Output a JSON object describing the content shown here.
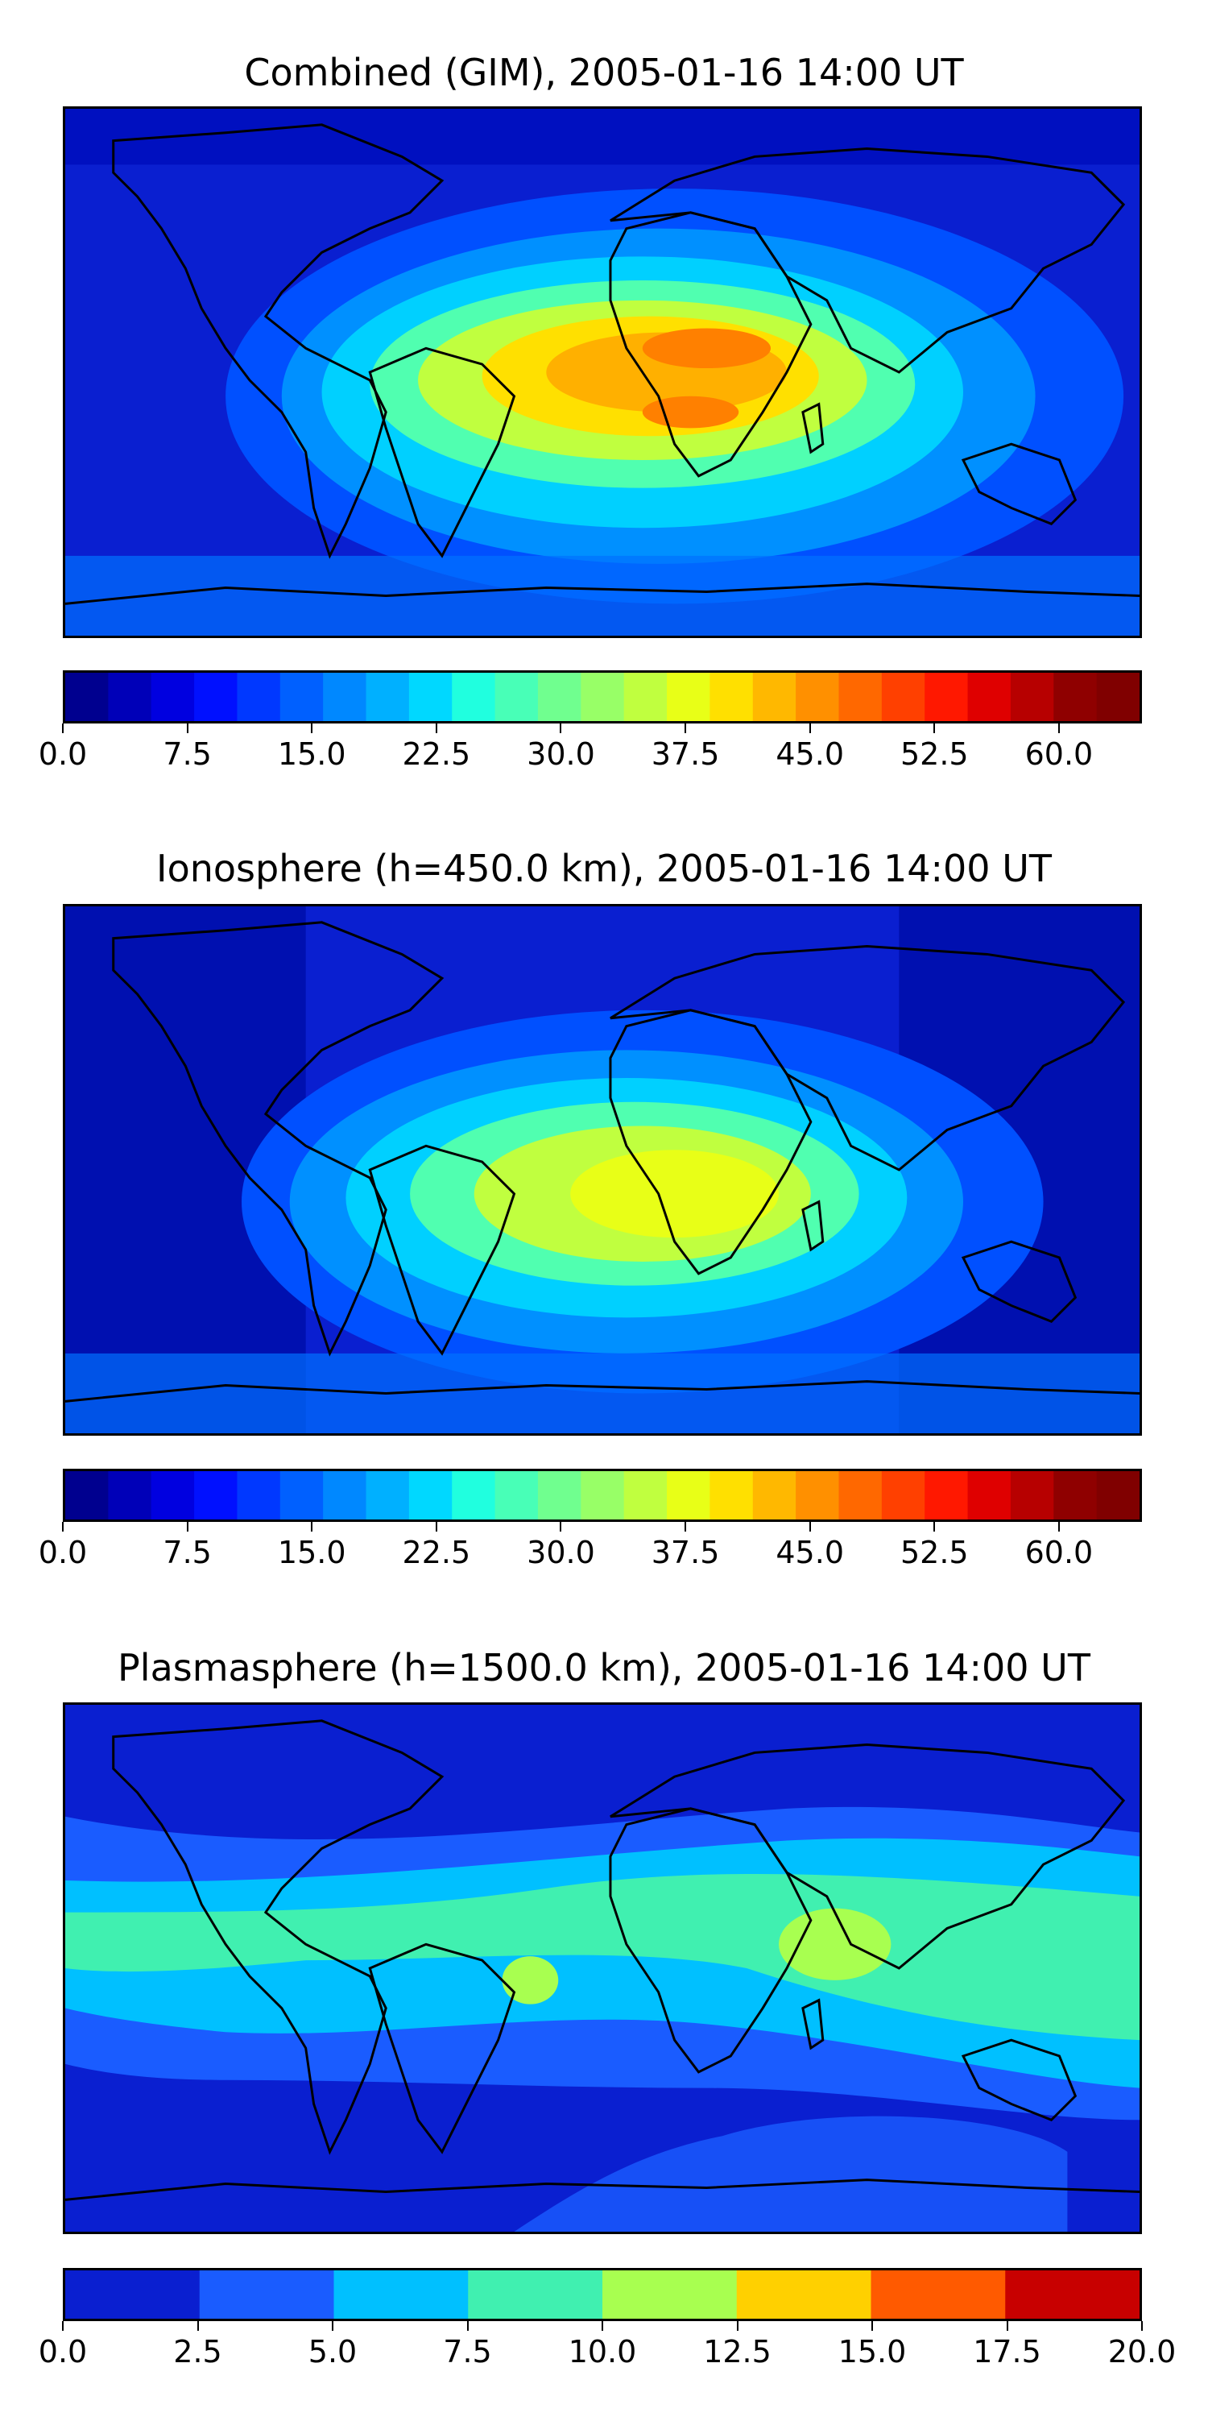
{
  "panels": [
    {
      "title": "Combined (GIM), 2005-01-16 14:00 UT",
      "colorbar": {
        "colors": [
          "#00008f",
          "#0000b8",
          "#0000e0",
          "#0010ff",
          "#0038ff",
          "#0060ff",
          "#0088ff",
          "#00b0ff",
          "#00d8ff",
          "#20ffdf",
          "#48ffb7",
          "#70ff8f",
          "#98ff67",
          "#c0ff3f",
          "#e8ff17",
          "#ffe000",
          "#ffb800",
          "#ff9000",
          "#ff6800",
          "#ff4000",
          "#ff1800",
          "#df0000",
          "#b70000",
          "#8f0000",
          "#800000"
        ],
        "tick_labels": [
          "0.0",
          "7.5",
          "15.0",
          "22.5",
          "30.0",
          "37.5",
          "45.0",
          "52.5",
          "60.0"
        ],
        "tick_values": [
          0,
          7.5,
          15,
          22.5,
          30,
          37.5,
          45,
          52.5,
          60
        ],
        "vmin": 0,
        "vmax": 65
      }
    },
    {
      "title": "Ionosphere  (h=450.0 km), 2005-01-16 14:00 UT",
      "colorbar": {
        "colors": [
          "#00008f",
          "#0000b8",
          "#0000e0",
          "#0010ff",
          "#0038ff",
          "#0060ff",
          "#0088ff",
          "#00b0ff",
          "#00d8ff",
          "#20ffdf",
          "#48ffb7",
          "#70ff8f",
          "#98ff67",
          "#c0ff3f",
          "#e8ff17",
          "#ffe000",
          "#ffb800",
          "#ff9000",
          "#ff6800",
          "#ff4000",
          "#ff1800",
          "#df0000",
          "#b70000",
          "#8f0000",
          "#800000"
        ],
        "tick_labels": [
          "0.0",
          "7.5",
          "15.0",
          "22.5",
          "30.0",
          "37.5",
          "45.0",
          "52.5",
          "60.0"
        ],
        "tick_values": [
          0,
          7.5,
          15,
          22.5,
          30,
          37.5,
          45,
          52.5,
          60
        ],
        "vmin": 0,
        "vmax": 65
      }
    },
    {
      "title": "Plasmasphere (h=1500.0 km), 2005-01-16 14:00 UT",
      "colorbar": {
        "colors": [
          "#0a1fd0",
          "#1a5cff",
          "#00c0ff",
          "#40f0b0",
          "#a8ff50",
          "#ffd000",
          "#ff5a00",
          "#c80000"
        ],
        "tick_labels": [
          "0.0",
          "2.5",
          "5.0",
          "7.5",
          "10.0",
          "12.5",
          "15.0",
          "17.5",
          "20.0"
        ],
        "tick_values": [
          0,
          2.5,
          5,
          7.5,
          10,
          12.5,
          15,
          17.5,
          20
        ],
        "vmin": 0,
        "vmax": 20
      }
    }
  ]
}
